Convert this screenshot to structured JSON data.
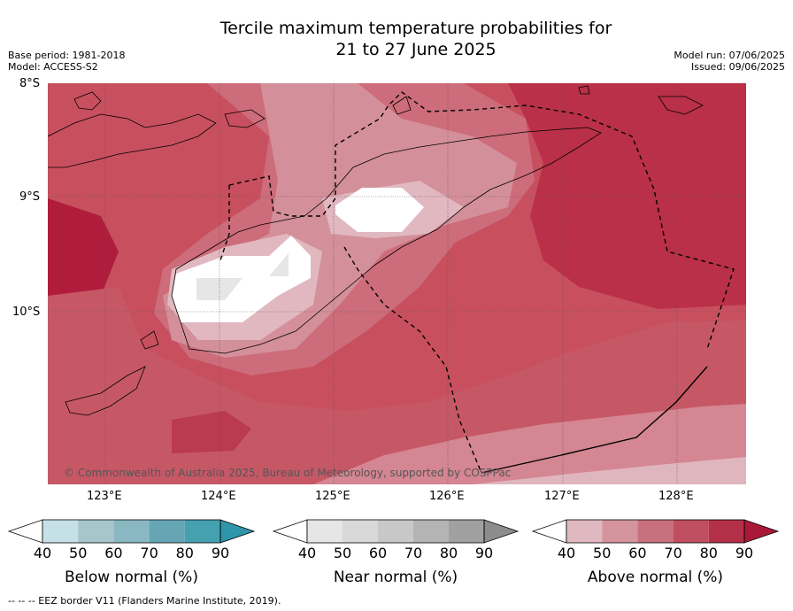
{
  "title": {
    "line1": "Tercile maximum temperature probabilities for",
    "line2": "21 to 27 June 2025"
  },
  "meta": {
    "base_period": "Base period: 1981-2018",
    "model": "Model: ACCESS-S2",
    "model_run": "Model run: 07/06/2025",
    "issued": "Issued: 09/06/2025"
  },
  "map": {
    "lat_labels": [
      "8°S",
      "9°S",
      "10°S"
    ],
    "lon_labels": [
      "123°E",
      "124°E",
      "125°E",
      "126°E",
      "127°E",
      "128°E"
    ],
    "copyright": "© Commonwealth of Australia 2025, Bureau of Meteorology, supported by COSPPac"
  },
  "colorbars": [
    {
      "name": "below",
      "title": "Below normal (%)",
      "ticks": [
        "40",
        "50",
        "60",
        "70",
        "80",
        "90"
      ],
      "colors": [
        "#ffffff",
        "#c6e0e7",
        "#a7c6cc",
        "#89b8c2",
        "#66a6b4",
        "#45a0b0",
        "#2f95a9"
      ]
    },
    {
      "name": "near",
      "title": "Near normal (%)",
      "ticks": [
        "40",
        "50",
        "60",
        "70",
        "80",
        "90"
      ],
      "colors": [
        "#ffffff",
        "#e6e6e6",
        "#d8d8d8",
        "#c8c8c8",
        "#b4b4b4",
        "#a0a0a0",
        "#8c8c8c"
      ]
    },
    {
      "name": "above",
      "title": "Above normal (%)",
      "ticks": [
        "40",
        "50",
        "60",
        "70",
        "80",
        "90"
      ],
      "colors": [
        "#ffffff",
        "#e0b8c0",
        "#d4949e",
        "#c8707e",
        "#be4e60",
        "#b43048",
        "#aa1838"
      ]
    }
  ],
  "footer": "--  --  -- EEZ border V11 (Flanders Marine Institute, 2019)."
}
